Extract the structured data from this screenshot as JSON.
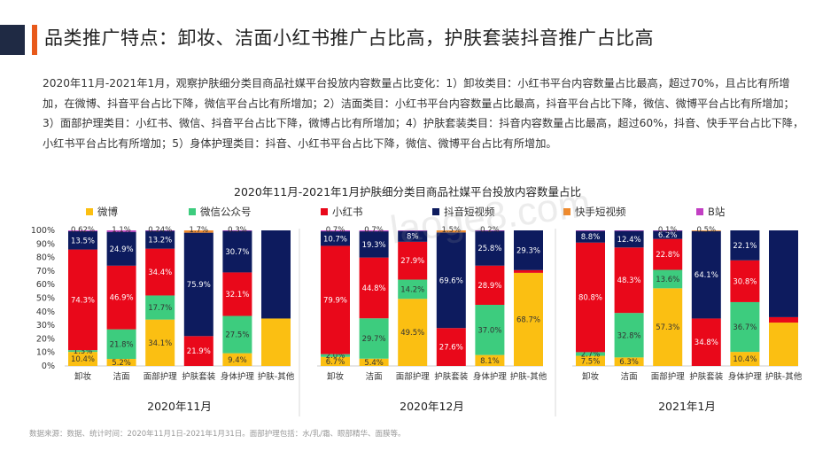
{
  "title": "品类推广特点：卸妆、洁面小红书推广占比高，护肤套装抖音推广占比高",
  "description": "2020年11月-2021年1月，观察护肤细分类目商品社媒平台投放内容数量占比变化：1）卸妆类目：小红书平台内容数量占比最高，超过70%，且占比有所增加，在微博、抖音平台占比下降，微信平台占比有所增加；2）洁面类目：小红书平台内容数量占比最高，抖音平台占比下降，微信、微博平台占比有所增加；3）面部护理类目：小红书、微信、抖音平台占比下降，微博占比有所增加；4）护肤套装类目：抖音内容数量占比最高，超过60%，抖音、快手平台占比下降，小红书平台占比有所增加；5）身体护理类目：抖音、小红书平台占比下降，微信、微博平台占比有所增加。",
  "footnote": "数据来源：数据、统计时间：2020年11月1日-2021年1月31日。面部护理包括：水/乳/霜、眼部精华、面膜等。",
  "watermark": "laoge8.com",
  "chart_data": {
    "type": "bar",
    "stacked": true,
    "percent": true,
    "title": "2020年11月-2021年1月护肤细分类目商品社媒平台投放内容数量占比",
    "categories": [
      "卸妆",
      "洁面",
      "面部护理",
      "护肤套装",
      "身体护理",
      "护肤-其他"
    ],
    "ylim": [
      0,
      100
    ],
    "yticks": [
      "0%",
      "10%",
      "20%",
      "30%",
      "40%",
      "50%",
      "60%",
      "70%",
      "80%",
      "90%",
      "100%"
    ],
    "legend_position": "top",
    "series": [
      {
        "name": "微博",
        "color": "#fbbf12"
      },
      {
        "name": "微信公众号",
        "color": "#3dcc7e"
      },
      {
        "name": "小红书",
        "color": "#e9081a"
      },
      {
        "name": "抖音短视频",
        "color": "#0d1b5e"
      },
      {
        "name": "快手短视频",
        "color": "#f08a2c"
      },
      {
        "name": "B站",
        "color": "#c23fc3"
      }
    ],
    "panels": [
      {
        "label": "2020年11月",
        "stacks": [
          {
            "values": [
              10.4,
              1.3,
              74.3,
              13.5,
              0.0,
              0.62
            ],
            "labels": [
              "10.4%",
              "1.3%",
              "74.3%",
              "13.5%",
              "",
              "0.62%"
            ]
          },
          {
            "values": [
              5.2,
              21.8,
              46.9,
              24.9,
              0.0,
              1.1
            ],
            "labels": [
              "5.2%",
              "21.8%",
              "46.9%",
              "24.9%",
              "",
              "1.1%"
            ]
          },
          {
            "values": [
              34.1,
              17.7,
              34.4,
              13.2,
              0.0,
              0.24
            ],
            "labels": [
              "34.1%",
              "17.7%",
              "34.4%",
              "13.2%",
              "",
              "0.24%"
            ]
          },
          {
            "values": [
              0.0,
              0.0,
              21.9,
              75.9,
              1.7,
              0.0
            ],
            "labels": [
              "",
              "",
              "21.9%",
              "75.9%",
              "1.7%",
              ""
            ]
          },
          {
            "values": [
              9.4,
              27.5,
              32.1,
              30.7,
              0.0,
              0.3
            ],
            "labels": [
              "9.4%",
              "27.5%",
              "32.1%",
              "30.7%",
              "",
              "0.3%"
            ]
          },
          {
            "values": [
              35.0,
              0.0,
              0.0,
              65.0,
              0.0,
              0.0
            ],
            "labels": [
              "",
              "",
              "",
              "",
              "",
              ""
            ]
          }
        ]
      },
      {
        "label": "2020年12月",
        "stacks": [
          {
            "values": [
              6.7,
              2.0,
              79.9,
              10.7,
              0.0,
              0.7
            ],
            "labels": [
              "6.7%",
              "2.0%",
              "79.9%",
              "10.7%",
              "",
              "0.7%"
            ]
          },
          {
            "values": [
              5.4,
              29.7,
              44.8,
              19.3,
              0.0,
              0.7
            ],
            "labels": [
              "5.4%",
              "29.7%",
              "44.8%",
              "19.3%",
              "",
              "0.7%"
            ]
          },
          {
            "values": [
              49.5,
              14.2,
              27.9,
              8.0,
              0.0,
              0.4
            ],
            "labels": [
              "49.5%",
              "14.2%",
              "27.9%",
              "8%",
              "",
              ""
            ]
          },
          {
            "values": [
              0.0,
              0.0,
              27.6,
              69.6,
              1.5,
              0.0
            ],
            "labels": [
              "",
              "",
              "27.6%",
              "69.6%",
              "1.5%",
              ""
            ]
          },
          {
            "values": [
              8.1,
              37.0,
              28.9,
              25.8,
              0.0,
              0.2
            ],
            "labels": [
              "8.1%",
              "37.0%",
              "28.9%",
              "25.8%",
              "",
              "0.2%"
            ]
          },
          {
            "values": [
              68.7,
              0.0,
              2.0,
              29.3,
              0.0,
              0.0
            ],
            "labels": [
              "68.7%",
              "",
              "",
              "29.3%",
              "",
              ""
            ]
          }
        ]
      },
      {
        "label": "2021年1月",
        "stacks": [
          {
            "values": [
              7.5,
              2.7,
              80.8,
              8.8,
              0.0,
              0.2
            ],
            "labels": [
              "7.5%",
              "2.7%",
              "80.8%",
              "8.8%",
              "",
              ""
            ]
          },
          {
            "values": [
              6.3,
              32.8,
              48.3,
              12.4,
              0.0,
              0.2
            ],
            "labels": [
              "6.3%",
              "32.8%",
              "48.3%",
              "12.4%",
              "",
              ""
            ]
          },
          {
            "values": [
              57.3,
              13.6,
              22.8,
              6.2,
              0.0,
              0.1
            ],
            "labels": [
              "57.3%",
              "13.6%",
              "22.8%",
              "6.2%",
              "",
              "0.1%"
            ]
          },
          {
            "values": [
              0.0,
              0.0,
              34.8,
              64.1,
              0.5,
              0.0
            ],
            "labels": [
              "",
              "",
              "34.8%",
              "64.1%",
              "0.5%",
              ""
            ]
          },
          {
            "values": [
              10.4,
              36.7,
              30.8,
              22.1,
              0.0,
              0.0
            ],
            "labels": [
              "10.4%",
              "36.7%",
              "30.8%",
              "22.1%",
              "",
              ""
            ]
          },
          {
            "values": [
              32.0,
              0.0,
              4.0,
              64.0,
              0.0,
              0.0
            ],
            "labels": [
              "",
              "",
              "",
              "",
              "",
              ""
            ]
          }
        ]
      }
    ]
  }
}
